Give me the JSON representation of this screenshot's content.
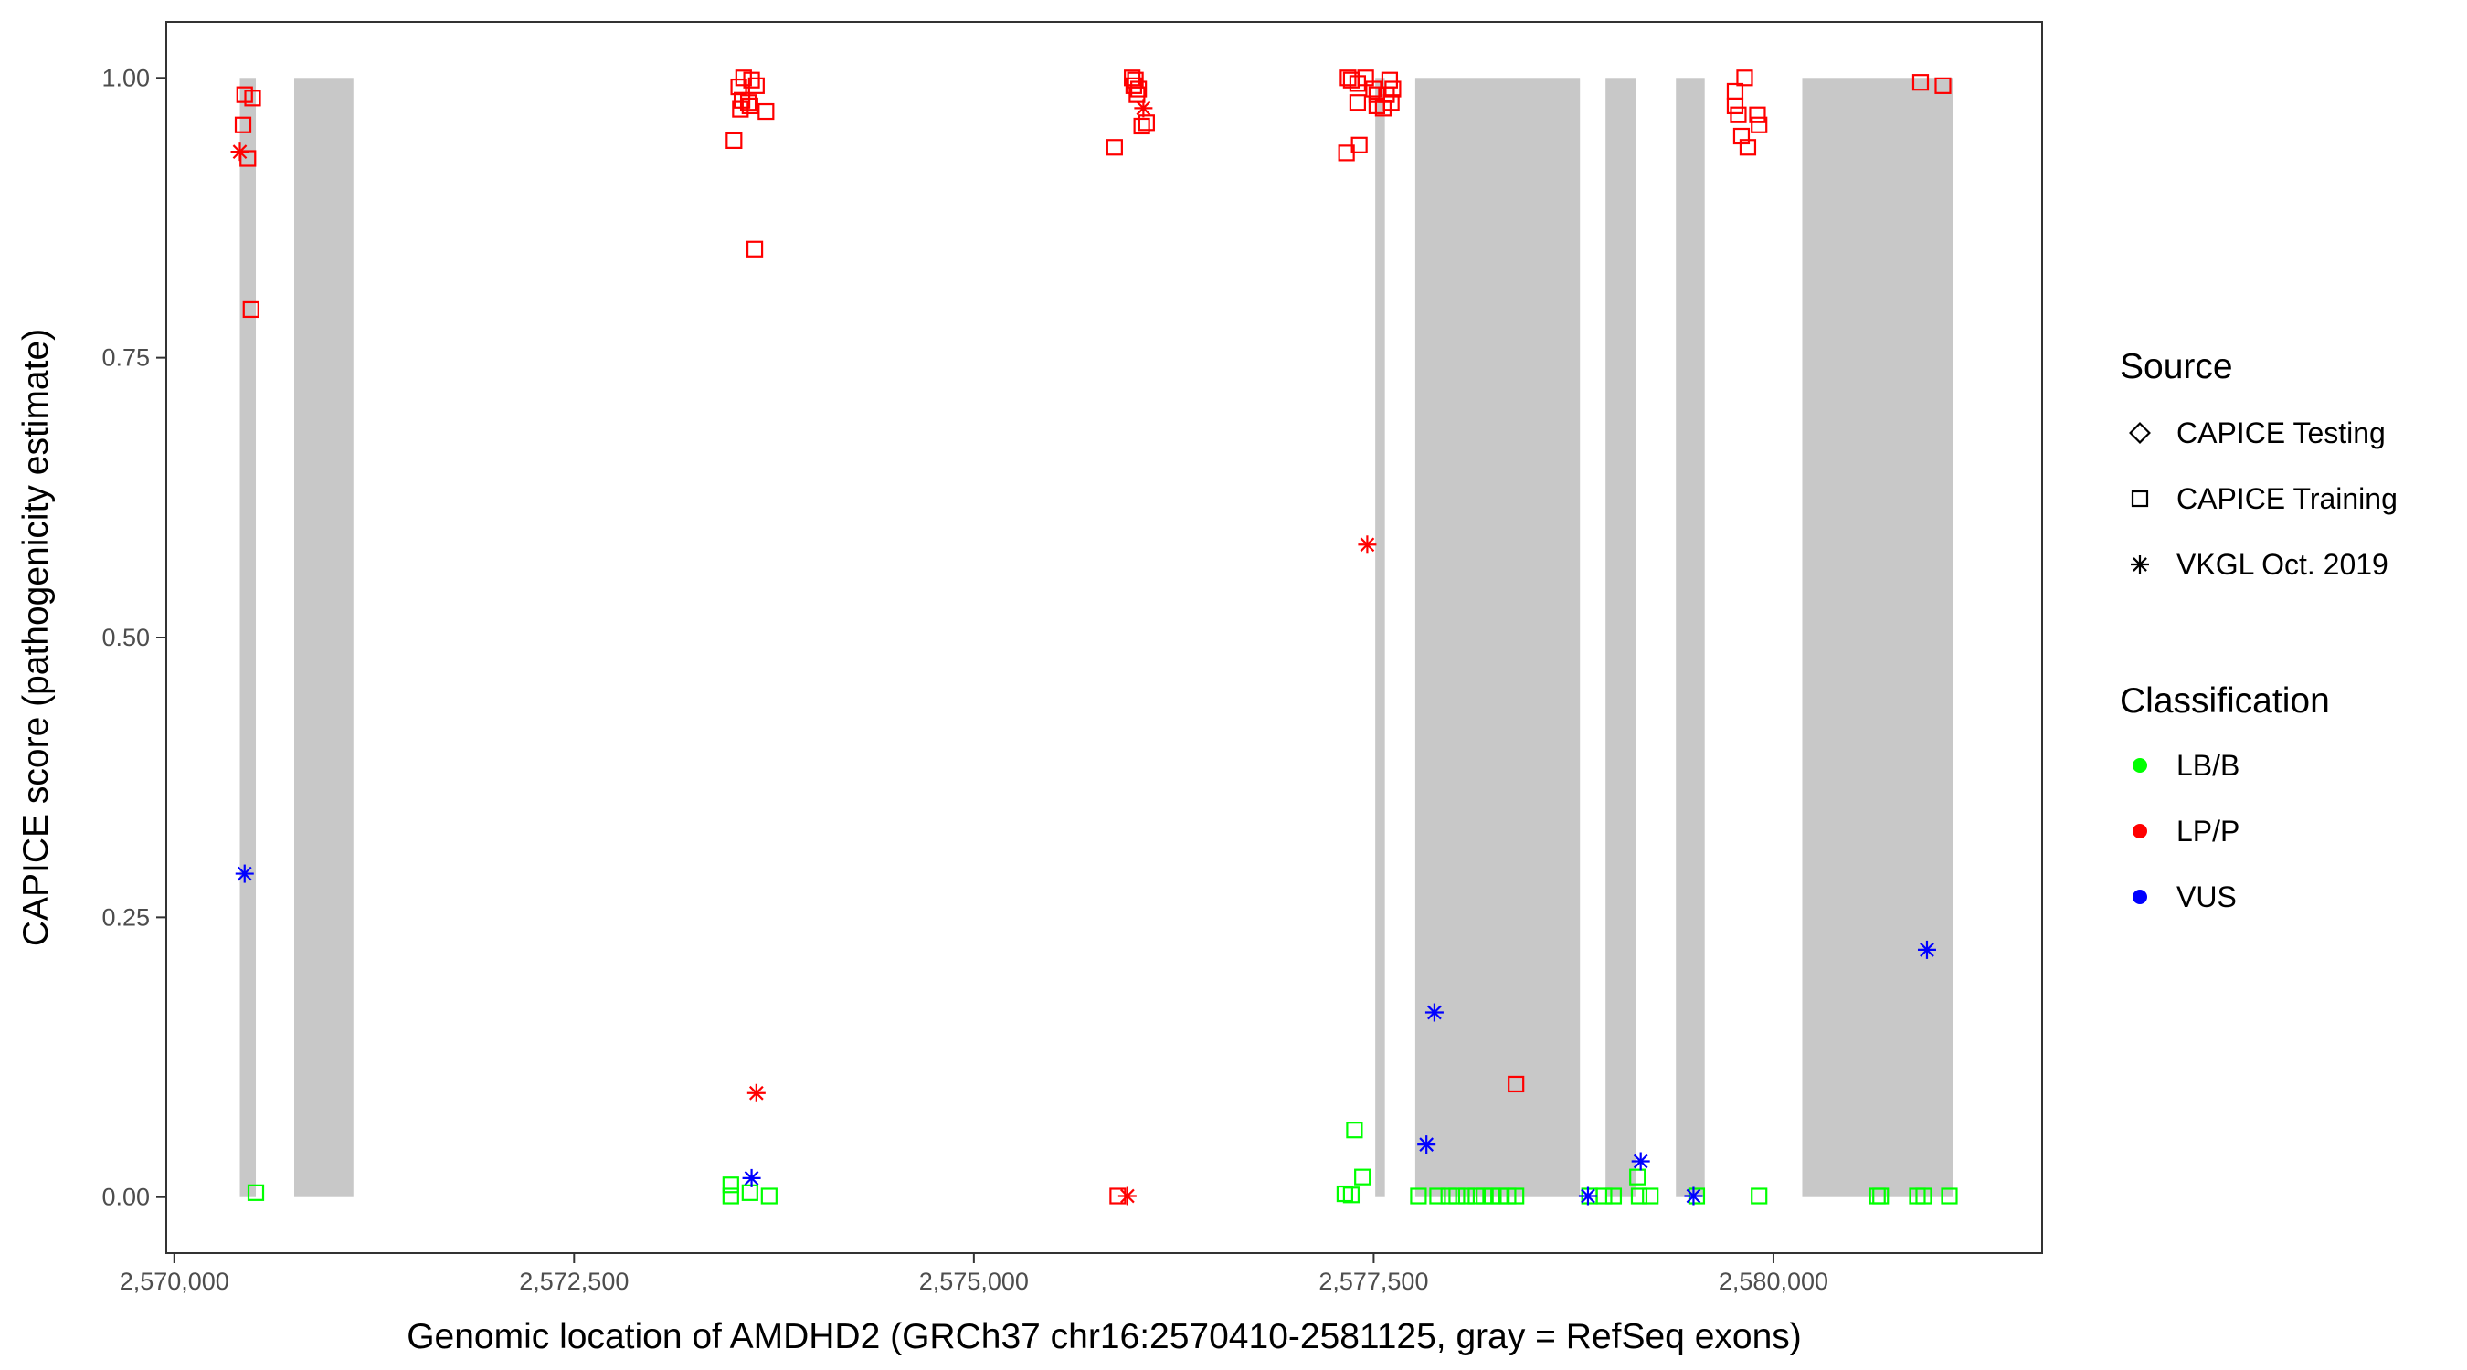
{
  "chart_data": {
    "type": "scatter",
    "xlabel": "Genomic location of AMDHD2 (GRCh37 chr16:2570410-2581125, gray = RefSeq exons)",
    "ylabel": "CAPICE score (pathogenicity estimate)",
    "xlim": [
      2569950,
      2581680
    ],
    "ylim": [
      -0.05,
      1.05
    ],
    "x_ticks": [
      {
        "value": 2570000,
        "label": "2,570,000"
      },
      {
        "value": 2572500,
        "label": "2,572,500"
      },
      {
        "value": 2575000,
        "label": "2,575,000"
      },
      {
        "value": 2577500,
        "label": "2,577,500"
      },
      {
        "value": 2580000,
        "label": "2,580,000"
      }
    ],
    "y_ticks": [
      {
        "value": 0.0,
        "label": "0.00"
      },
      {
        "value": 0.25,
        "label": "0.25"
      },
      {
        "value": 0.5,
        "label": "0.50"
      },
      {
        "value": 0.75,
        "label": "0.75"
      },
      {
        "value": 1.0,
        "label": "1.00"
      }
    ],
    "grid": false,
    "exons": [
      [
        2570410,
        2570510
      ],
      [
        2570750,
        2571120
      ],
      [
        2577510,
        2577570
      ],
      [
        2577760,
        2578790
      ],
      [
        2578950,
        2579140
      ],
      [
        2579390,
        2579570
      ],
      [
        2580180,
        2581125
      ]
    ],
    "exon_color": "#c8c8c8",
    "legend_placement": "right",
    "shape_legend": {
      "title": "Source",
      "items": [
        {
          "shape": "diamond",
          "label": "CAPICE Testing"
        },
        {
          "shape": "square",
          "label": "CAPICE Training"
        },
        {
          "shape": "asterisk",
          "label": "VKGL Oct. 2019"
        }
      ]
    },
    "color_legend": {
      "title": "Classification",
      "items": [
        {
          "key": "LB/B",
          "label": "LB/B",
          "color": "#00ff00"
        },
        {
          "key": "LP/P",
          "label": "LP/P",
          "color": "#ff0000"
        },
        {
          "key": "VUS",
          "label": "VUS",
          "color": "#0000ff"
        }
      ]
    },
    "series": [
      {
        "source": "CAPICE Training",
        "classification": "LP/P",
        "points": [
          [
            2570440,
            0.985
          ],
          [
            2570490,
            0.982
          ],
          [
            2570430,
            0.958
          ],
          [
            2570460,
            0.928
          ],
          [
            2570480,
            0.793
          ],
          [
            2573530,
            0.992
          ],
          [
            2573560,
            1.0
          ],
          [
            2573610,
            0.998
          ],
          [
            2573640,
            0.993
          ],
          [
            2573550,
            0.98
          ],
          [
            2573590,
            0.978
          ],
          [
            2573540,
            0.972
          ],
          [
            2573600,
            0.975
          ],
          [
            2573700,
            0.97
          ],
          [
            2573500,
            0.944
          ],
          [
            2573630,
            0.847
          ],
          [
            2575990,
            1.0
          ],
          [
            2576010,
            0.998
          ],
          [
            2576000,
            0.993
          ],
          [
            2576030,
            0.99
          ],
          [
            2576020,
            0.985
          ],
          [
            2576050,
            0.957
          ],
          [
            2576080,
            0.96
          ],
          [
            2575880,
            0.938
          ],
          [
            2575900,
            0.001
          ],
          [
            2577340,
            1.0
          ],
          [
            2577360,
            0.998
          ],
          [
            2577400,
            0.995
          ],
          [
            2577450,
            1.0
          ],
          [
            2577500,
            0.99
          ],
          [
            2577520,
            0.985
          ],
          [
            2577600,
            0.998
          ],
          [
            2577620,
            0.99
          ],
          [
            2577580,
            0.985
          ],
          [
            2577400,
            0.978
          ],
          [
            2577520,
            0.975
          ],
          [
            2577560,
            0.973
          ],
          [
            2577610,
            0.978
          ],
          [
            2577410,
            0.94
          ],
          [
            2577330,
            0.933
          ],
          [
            2579760,
            0.988
          ],
          [
            2579820,
            1.0
          ],
          [
            2579760,
            0.975
          ],
          [
            2579780,
            0.967
          ],
          [
            2579900,
            0.967
          ],
          [
            2579910,
            0.958
          ],
          [
            2579800,
            0.948
          ],
          [
            2579840,
            0.938
          ],
          [
            2580920,
            0.996
          ],
          [
            2581060,
            0.993
          ],
          [
            2578390,
            0.101
          ]
        ]
      },
      {
        "source": "CAPICE Training",
        "classification": "LB/B",
        "points": [
          [
            2570510,
            0.004
          ],
          [
            2573480,
            0.011
          ],
          [
            2573480,
            0.001
          ],
          [
            2573600,
            0.004
          ],
          [
            2573720,
            0.001
          ],
          [
            2577320,
            0.003
          ],
          [
            2577360,
            0.002
          ],
          [
            2577380,
            0.06
          ],
          [
            2577430,
            0.018
          ],
          [
            2577780,
            0.001
          ],
          [
            2577900,
            0.001
          ],
          [
            2577970,
            0.001
          ],
          [
            2578020,
            0.001
          ],
          [
            2578080,
            0.001
          ],
          [
            2578140,
            0.001
          ],
          [
            2578190,
            0.001
          ],
          [
            2578240,
            0.001
          ],
          [
            2578290,
            0.001
          ],
          [
            2578340,
            0.001
          ],
          [
            2578390,
            0.001
          ],
          [
            2578850,
            0.001
          ],
          [
            2578940,
            0.001
          ],
          [
            2579000,
            0.001
          ],
          [
            2579150,
            0.018
          ],
          [
            2579160,
            0.001
          ],
          [
            2579230,
            0.001
          ],
          [
            2579520,
            0.001
          ],
          [
            2579910,
            0.001
          ],
          [
            2580650,
            0.001
          ],
          [
            2580670,
            0.001
          ],
          [
            2580900,
            0.001
          ],
          [
            2580940,
            0.001
          ],
          [
            2581100,
            0.001
          ]
        ]
      },
      {
        "source": "VKGL Oct. 2019",
        "classification": "LP/P",
        "points": [
          [
            2570410,
            0.934
          ],
          [
            2573640,
            0.093
          ],
          [
            2575960,
            0.001
          ],
          [
            2576060,
            0.973
          ],
          [
            2577460,
            0.583
          ]
        ]
      },
      {
        "source": "VKGL Oct. 2019",
        "classification": "VUS",
        "points": [
          [
            2570440,
            0.289
          ],
          [
            2573610,
            0.017
          ],
          [
            2577830,
            0.047
          ],
          [
            2577880,
            0.165
          ],
          [
            2578840,
            0.001
          ],
          [
            2579170,
            0.032
          ],
          [
            2579500,
            0.001
          ],
          [
            2580960,
            0.221
          ]
        ]
      }
    ]
  }
}
